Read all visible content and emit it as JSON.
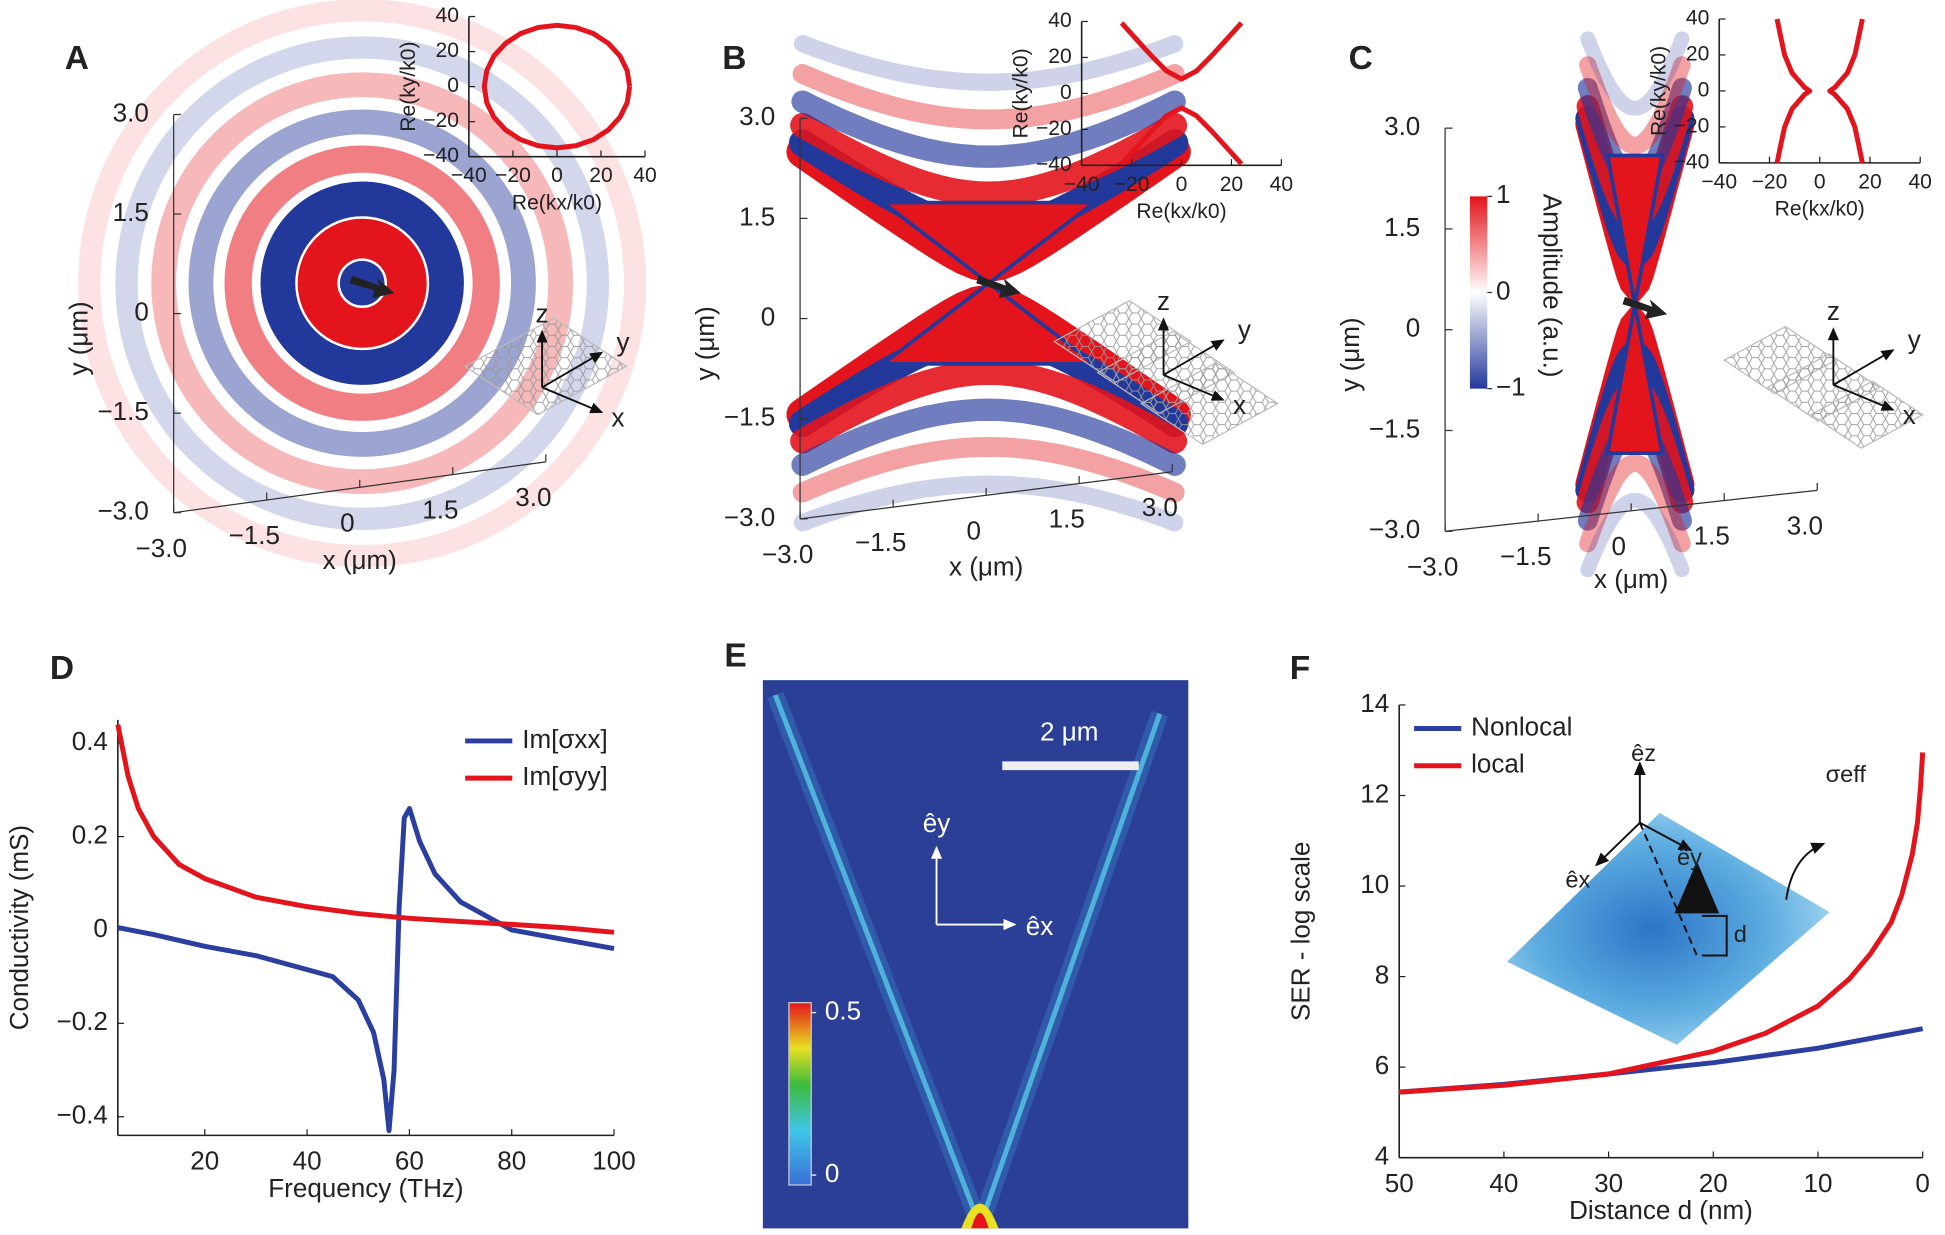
{
  "chart_data": [
    {
      "type": "field-map",
      "label": "A",
      "xlabel": "x (μm)",
      "ylabel": "y (μm)",
      "xlim": [
        -3,
        3
      ],
      "ylim": [
        -3,
        3
      ],
      "xticks": [
        {
          "value": -3,
          "label": "−3.0"
        },
        {
          "value": -1.5,
          "label": "−1.5"
        },
        0,
        1.5,
        {
          "value": 3,
          "label": "3.0"
        }
      ],
      "yticks": [
        {
          "value": -3,
          "label": "−3.0"
        },
        {
          "value": -1.5,
          "label": "−1.5"
        },
        0,
        1.5,
        {
          "value": 3,
          "label": "3.0"
        }
      ],
      "colors": [
        "#e3141c",
        "#23389b"
      ],
      "axes_labels": [
        "z",
        "y",
        "x"
      ],
      "inset": {
        "type": "line",
        "xlim": [
          -40,
          40
        ],
        "ylim": [
          -40,
          40
        ],
        "xlabel": "Re(kx/k0)",
        "ylabel": "Re(ky/k0)",
        "xticks": [
          {
            "value": -40,
            "label": "−40"
          },
          {
            "value": -20,
            "label": "−20"
          },
          0,
          20,
          40
        ],
        "yticks": [
          {
            "value": -40,
            "label": "−40"
          },
          {
            "value": -20,
            "label": "−20"
          },
          0,
          20,
          40
        ],
        "series": [
          {
            "color": "#e3141c",
            "x": [
              33,
              31.9,
              28.6,
              23.3,
              16.5,
              8.5,
              0,
              -8.5,
              -16.5,
              -23.3,
              -28.6,
              -31.9,
              -33,
              -31.9,
              -28.6,
              -23.3,
              -16.5,
              -8.5,
              0,
              8.5,
              16.5,
              23.3,
              28.6,
              31.9,
              33
            ],
            "values": [
              0,
              9.1,
              17.5,
              24.7,
              30.3,
              33.8,
              35,
              33.8,
              30.3,
              24.7,
              17.5,
              9.1,
              0,
              -9.1,
              -17.5,
              -24.7,
              -30.3,
              -33.8,
              -35,
              -33.8,
              -30.3,
              -24.7,
              -17.5,
              -9.1,
              0
            ]
          }
        ]
      }
    },
    {
      "type": "field-map",
      "label": "B",
      "xlabel": "x (μm)",
      "ylabel": "y (μm)",
      "xlim": [
        -3,
        3
      ],
      "ylim": [
        -3,
        3
      ],
      "xticks": [
        {
          "value": -3,
          "label": "−3.0"
        },
        {
          "value": -1.5,
          "label": "−1.5"
        },
        0,
        1.5,
        {
          "value": 3,
          "label": "3.0"
        }
      ],
      "yticks": [
        {
          "value": -3,
          "label": "−3.0"
        },
        {
          "value": -1.5,
          "label": "−1.5"
        },
        0,
        1.5,
        {
          "value": 3,
          "label": "3.0"
        }
      ],
      "colors": [
        "#e3141c",
        "#23389b"
      ],
      "axes_labels": [
        "z",
        "y",
        "x"
      ],
      "inset": {
        "type": "line",
        "xlim": [
          -40,
          40
        ],
        "ylim": [
          -40,
          40
        ],
        "xlabel": "Re(kx/k0)",
        "ylabel": "Re(ky/k0)",
        "xticks": [
          {
            "value": -40,
            "label": "−40"
          },
          {
            "value": -20,
            "label": "−20"
          },
          0,
          20,
          40
        ],
        "yticks": [
          {
            "value": -40,
            "label": "−40"
          },
          {
            "value": -20,
            "label": "−20"
          },
          0,
          20,
          40
        ],
        "series": [
          {
            "color": "#e3141c",
            "x": [
              -24,
              -18,
              -12,
              -6,
              0,
              6,
              12,
              18,
              24
            ],
            "values": [
              39.2,
              29.9,
              20.8,
              12.5,
              8,
              12.5,
              20.8,
              29.9,
              39.2
            ]
          },
          {
            "color": "#e3141c",
            "x": [
              -24,
              -18,
              -12,
              -6,
              0,
              6,
              12,
              18,
              24
            ],
            "values": [
              -39.2,
              -29.9,
              -20.8,
              -12.5,
              -8,
              -12.5,
              -20.8,
              -29.9,
              -39.2
            ]
          }
        ]
      }
    },
    {
      "type": "field-map",
      "label": "C",
      "xlabel": "x (μm)",
      "ylabel": "y (μm)",
      "xlim": [
        -3,
        3
      ],
      "ylim": [
        -3,
        3
      ],
      "xticks": [
        {
          "value": -3,
          "label": "−3.0"
        },
        {
          "value": -1.5,
          "label": "−1.5"
        },
        0,
        1.5,
        {
          "value": 3,
          "label": "3.0"
        }
      ],
      "yticks": [
        {
          "value": -3,
          "label": "−3.0"
        },
        {
          "value": -1.5,
          "label": "−1.5"
        },
        0,
        1.5,
        {
          "value": 3,
          "label": "3.0"
        }
      ],
      "colors": [
        "#e3141c",
        "#23389b"
      ],
      "axes_labels": [
        "z",
        "y",
        "x"
      ],
      "colorbar": {
        "label": "Amplitude (a.u.)",
        "lim": [
          -1,
          1
        ],
        "ticks": [
          1,
          0,
          {
            "value": -1,
            "label": "−1"
          }
        ]
      },
      "inset": {
        "type": "line",
        "xlim": [
          -40,
          40
        ],
        "ylim": [
          -40,
          40
        ],
        "xlabel": "Re(kx/k0)",
        "ylabel": "Re(ky/k0)",
        "xticks": [
          {
            "value": -40,
            "label": "−40"
          },
          {
            "value": -20,
            "label": "−20"
          },
          0,
          20,
          40
        ],
        "yticks": [
          {
            "value": -40,
            "label": "−40"
          },
          {
            "value": -20,
            "label": "−20"
          },
          0,
          20,
          40
        ],
        "series": [
          {
            "color": "#e3141c",
            "x": [
              -17,
              -15.5,
              -14,
              -11,
              -6,
              -4,
              -6,
              -11,
              -14,
              -15.5,
              -17
            ],
            "values": [
              40,
              30,
              20,
              10,
              2,
              0,
              -2,
              -10,
              -20,
              -30,
              -40
            ]
          },
          {
            "color": "#e3141c",
            "x": [
              17,
              15.5,
              14,
              11,
              6,
              4,
              6,
              11,
              14,
              15.5,
              17
            ],
            "values": [
              40,
              30,
              20,
              10,
              2,
              0,
              -2,
              -10,
              -20,
              -30,
              -40
            ]
          }
        ]
      }
    },
    {
      "type": "line",
      "label": "D",
      "xlabel": "Frequency (THz)",
      "ylabel": "Conductivity (mS)",
      "xlim": [
        3,
        100
      ],
      "ylim": [
        -0.44,
        0.45
      ],
      "xticks": [
        20,
        40,
        60,
        80,
        100
      ],
      "yticks": [
        {
          "value": -0.4,
          "label": "−0.4"
        },
        {
          "value": -0.2,
          "label": "−0.2"
        },
        0,
        0.2,
        0.4
      ],
      "series": [
        {
          "name": "Im[σxx]",
          "color": "#2b3fa0",
          "x": [
            3,
            10,
            20,
            30,
            40,
            45,
            50,
            53,
            55,
            56,
            57,
            58,
            59,
            60,
            62,
            65,
            70,
            75,
            80,
            90,
            100
          ],
          "values": [
            0.005,
            -0.01,
            -0.035,
            -0.055,
            -0.085,
            -0.1,
            -0.15,
            -0.22,
            -0.32,
            -0.43,
            -0.3,
            0.05,
            0.24,
            0.26,
            0.19,
            0.12,
            0.06,
            0.03,
            0,
            -0.02,
            -0.04
          ]
        },
        {
          "name": "Im[σyy]",
          "color": "#e3141c",
          "x": [
            3,
            5,
            7,
            10,
            15,
            20,
            30,
            40,
            50,
            60,
            70,
            80,
            90,
            100
          ],
          "values": [
            0.44,
            0.33,
            0.26,
            0.2,
            0.14,
            0.11,
            0.07,
            0.05,
            0.035,
            0.025,
            0.018,
            0.012,
            0.005,
            -0.005
          ]
        }
      ]
    },
    {
      "type": "heatmap-image",
      "label": "E",
      "scale_bar": "2 μm",
      "axes_labels": [
        "êy",
        "êx"
      ],
      "colorbar": {
        "lim": [
          0,
          0.5
        ],
        "ticks": [
          0.5,
          0
        ]
      }
    },
    {
      "type": "line",
      "label": "F",
      "xlabel": "Distance d (nm)",
      "ylabel": "SER - log scale",
      "xlim": [
        50,
        0
      ],
      "ylim": [
        4,
        14
      ],
      "xticks": [
        50,
        40,
        30,
        20,
        10,
        0
      ],
      "yticks": [
        4,
        6,
        8,
        10,
        12,
        14
      ],
      "inset_labels": [
        "êz",
        "êx",
        "êy",
        "d",
        "σeff"
      ],
      "series": [
        {
          "name": "Nonlocal",
          "color": "#2b3fa0",
          "x": [
            50,
            40,
            30,
            20,
            10,
            0
          ],
          "values": [
            5.45,
            5.62,
            5.85,
            6.1,
            6.42,
            6.85
          ]
        },
        {
          "name": "local",
          "color": "#e3141c",
          "x": [
            50,
            40,
            30,
            20,
            15,
            10,
            7,
            5,
            3,
            2,
            1,
            0.5,
            0.2,
            0
          ],
          "values": [
            5.45,
            5.6,
            5.85,
            6.35,
            6.75,
            7.35,
            7.95,
            8.5,
            9.2,
            9.8,
            10.7,
            11.4,
            12.2,
            12.95
          ]
        }
      ]
    }
  ]
}
